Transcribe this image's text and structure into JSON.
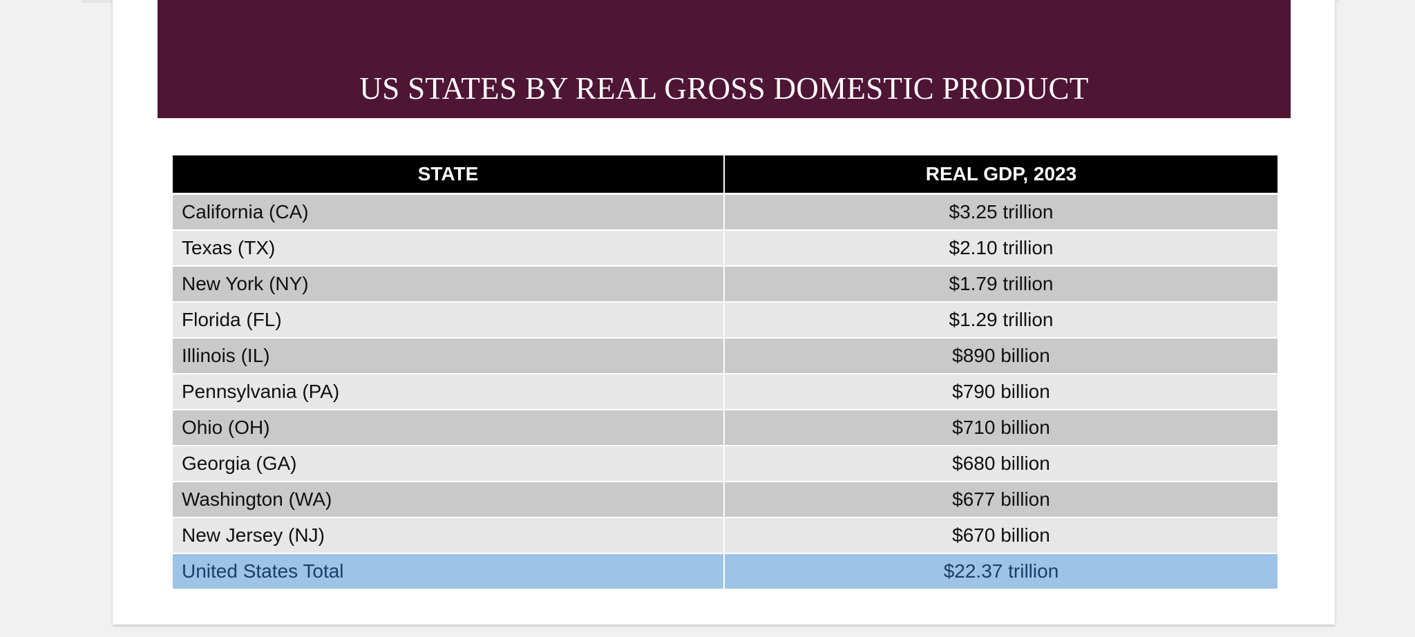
{
  "title": "US STATES BY REAL GROSS DOMESTIC PRODUCT",
  "table": {
    "headers": [
      "STATE",
      "REAL GDP, 2023"
    ],
    "rows": [
      {
        "state": "California (CA)",
        "gdp": "$3.25 trillion"
      },
      {
        "state": "Texas (TX)",
        "gdp": "$2.10 trillion"
      },
      {
        "state": "New York (NY)",
        "gdp": "$1.79 trillion"
      },
      {
        "state": "Florida (FL)",
        "gdp": "$1.29 trillion"
      },
      {
        "state": "Illinois (IL)",
        "gdp": "$890 billion"
      },
      {
        "state": "Pennsylvania (PA)",
        "gdp": "$790 billion"
      },
      {
        "state": "Ohio (OH)",
        "gdp": "$710 billion"
      },
      {
        "state": "Georgia (GA)",
        "gdp": "$680 billion"
      },
      {
        "state": "Washington (WA)",
        "gdp": "$677 billion"
      },
      {
        "state": "New Jersey (NJ)",
        "gdp": "$670 billion"
      }
    ],
    "total": {
      "state": "United States Total",
      "gdp": "$22.37 trillion"
    }
  },
  "colors": {
    "banner": "#4e1534",
    "header_row": "#000000",
    "row_dark": "#c9c9c9",
    "row_light": "#e7e7e7",
    "total_row": "#9dc3e6",
    "total_text": "#1f3c68"
  }
}
